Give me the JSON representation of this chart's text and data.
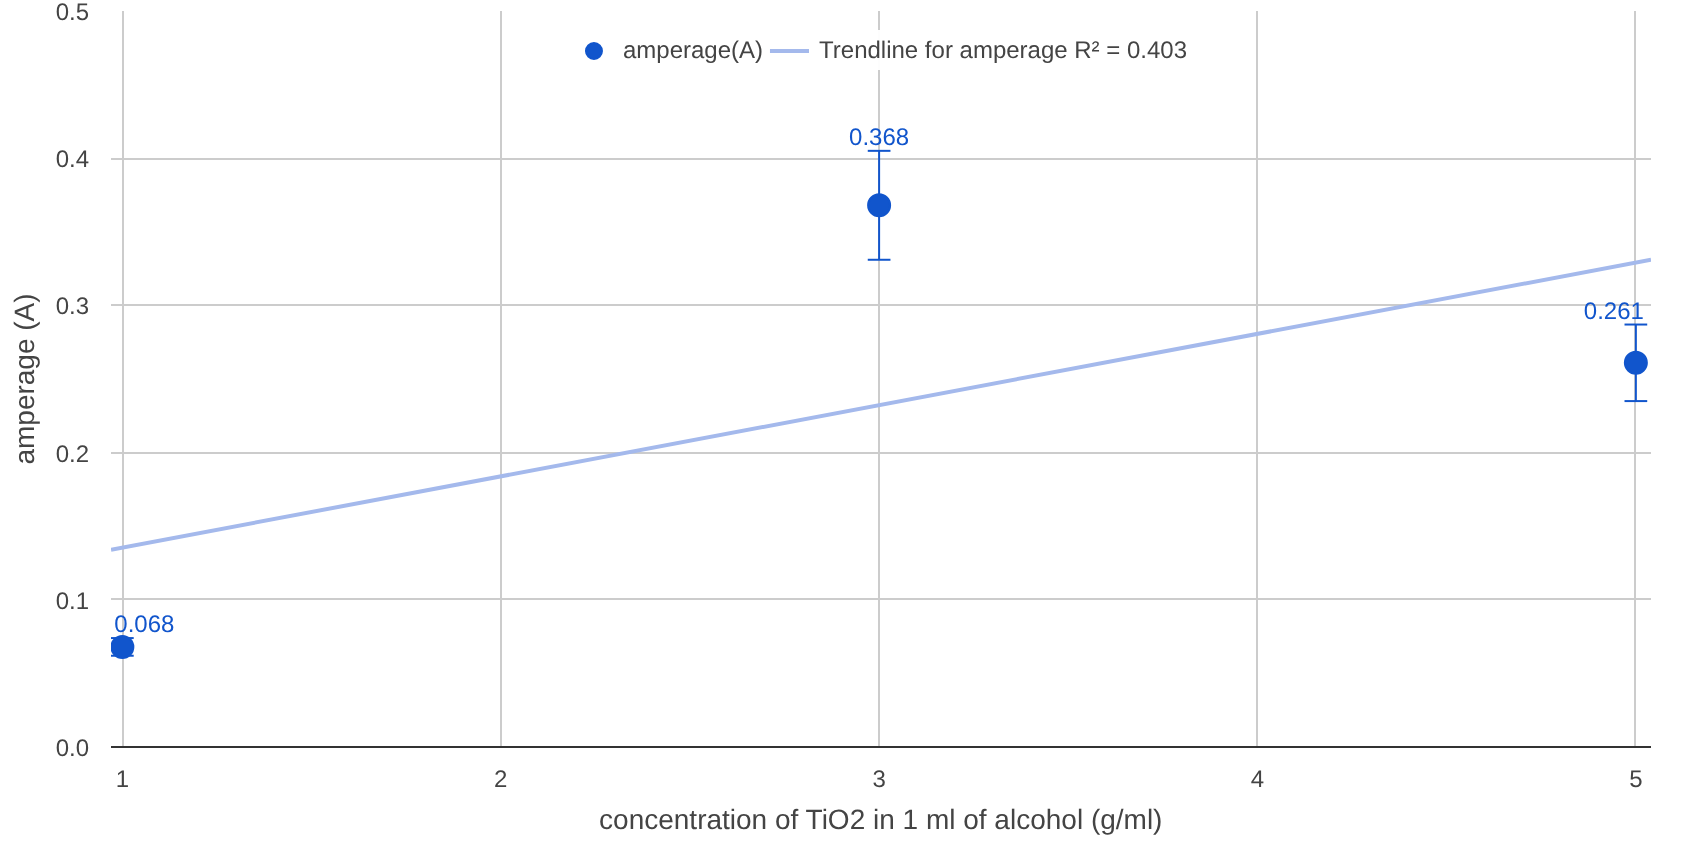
{
  "chart_data": {
    "type": "scatter",
    "xlabel": "concentration of TiO2 in 1 ml of alcohol (g/ml)",
    "ylabel": "amperage (A)",
    "x": [
      1,
      3,
      5
    ],
    "series": [
      {
        "name": "amperage(A)",
        "color": "#1155cc",
        "values": [
          0.068,
          0.368,
          0.261
        ],
        "errors": [
          0.006,
          0.037,
          0.026
        ],
        "data_labels": true,
        "marker": "circle"
      },
      {
        "name": "Trendline for amperage R² = 0.403",
        "type": "line",
        "color": "#a4b9ec",
        "x": [
          0.97,
          5.04
        ],
        "values": [
          0.134,
          0.331
        ],
        "line_style": "solid"
      }
    ],
    "xlim": [
      0.97,
      5.04
    ],
    "ylim": [
      0,
      0.5
    ],
    "xticks": [
      1,
      2,
      3,
      4,
      5
    ],
    "yticks": [
      {
        "value": 0,
        "label": "0.0"
      },
      0.1,
      0.2,
      0.3,
      0.4,
      0.5
    ],
    "grid": true,
    "legend": "top"
  }
}
